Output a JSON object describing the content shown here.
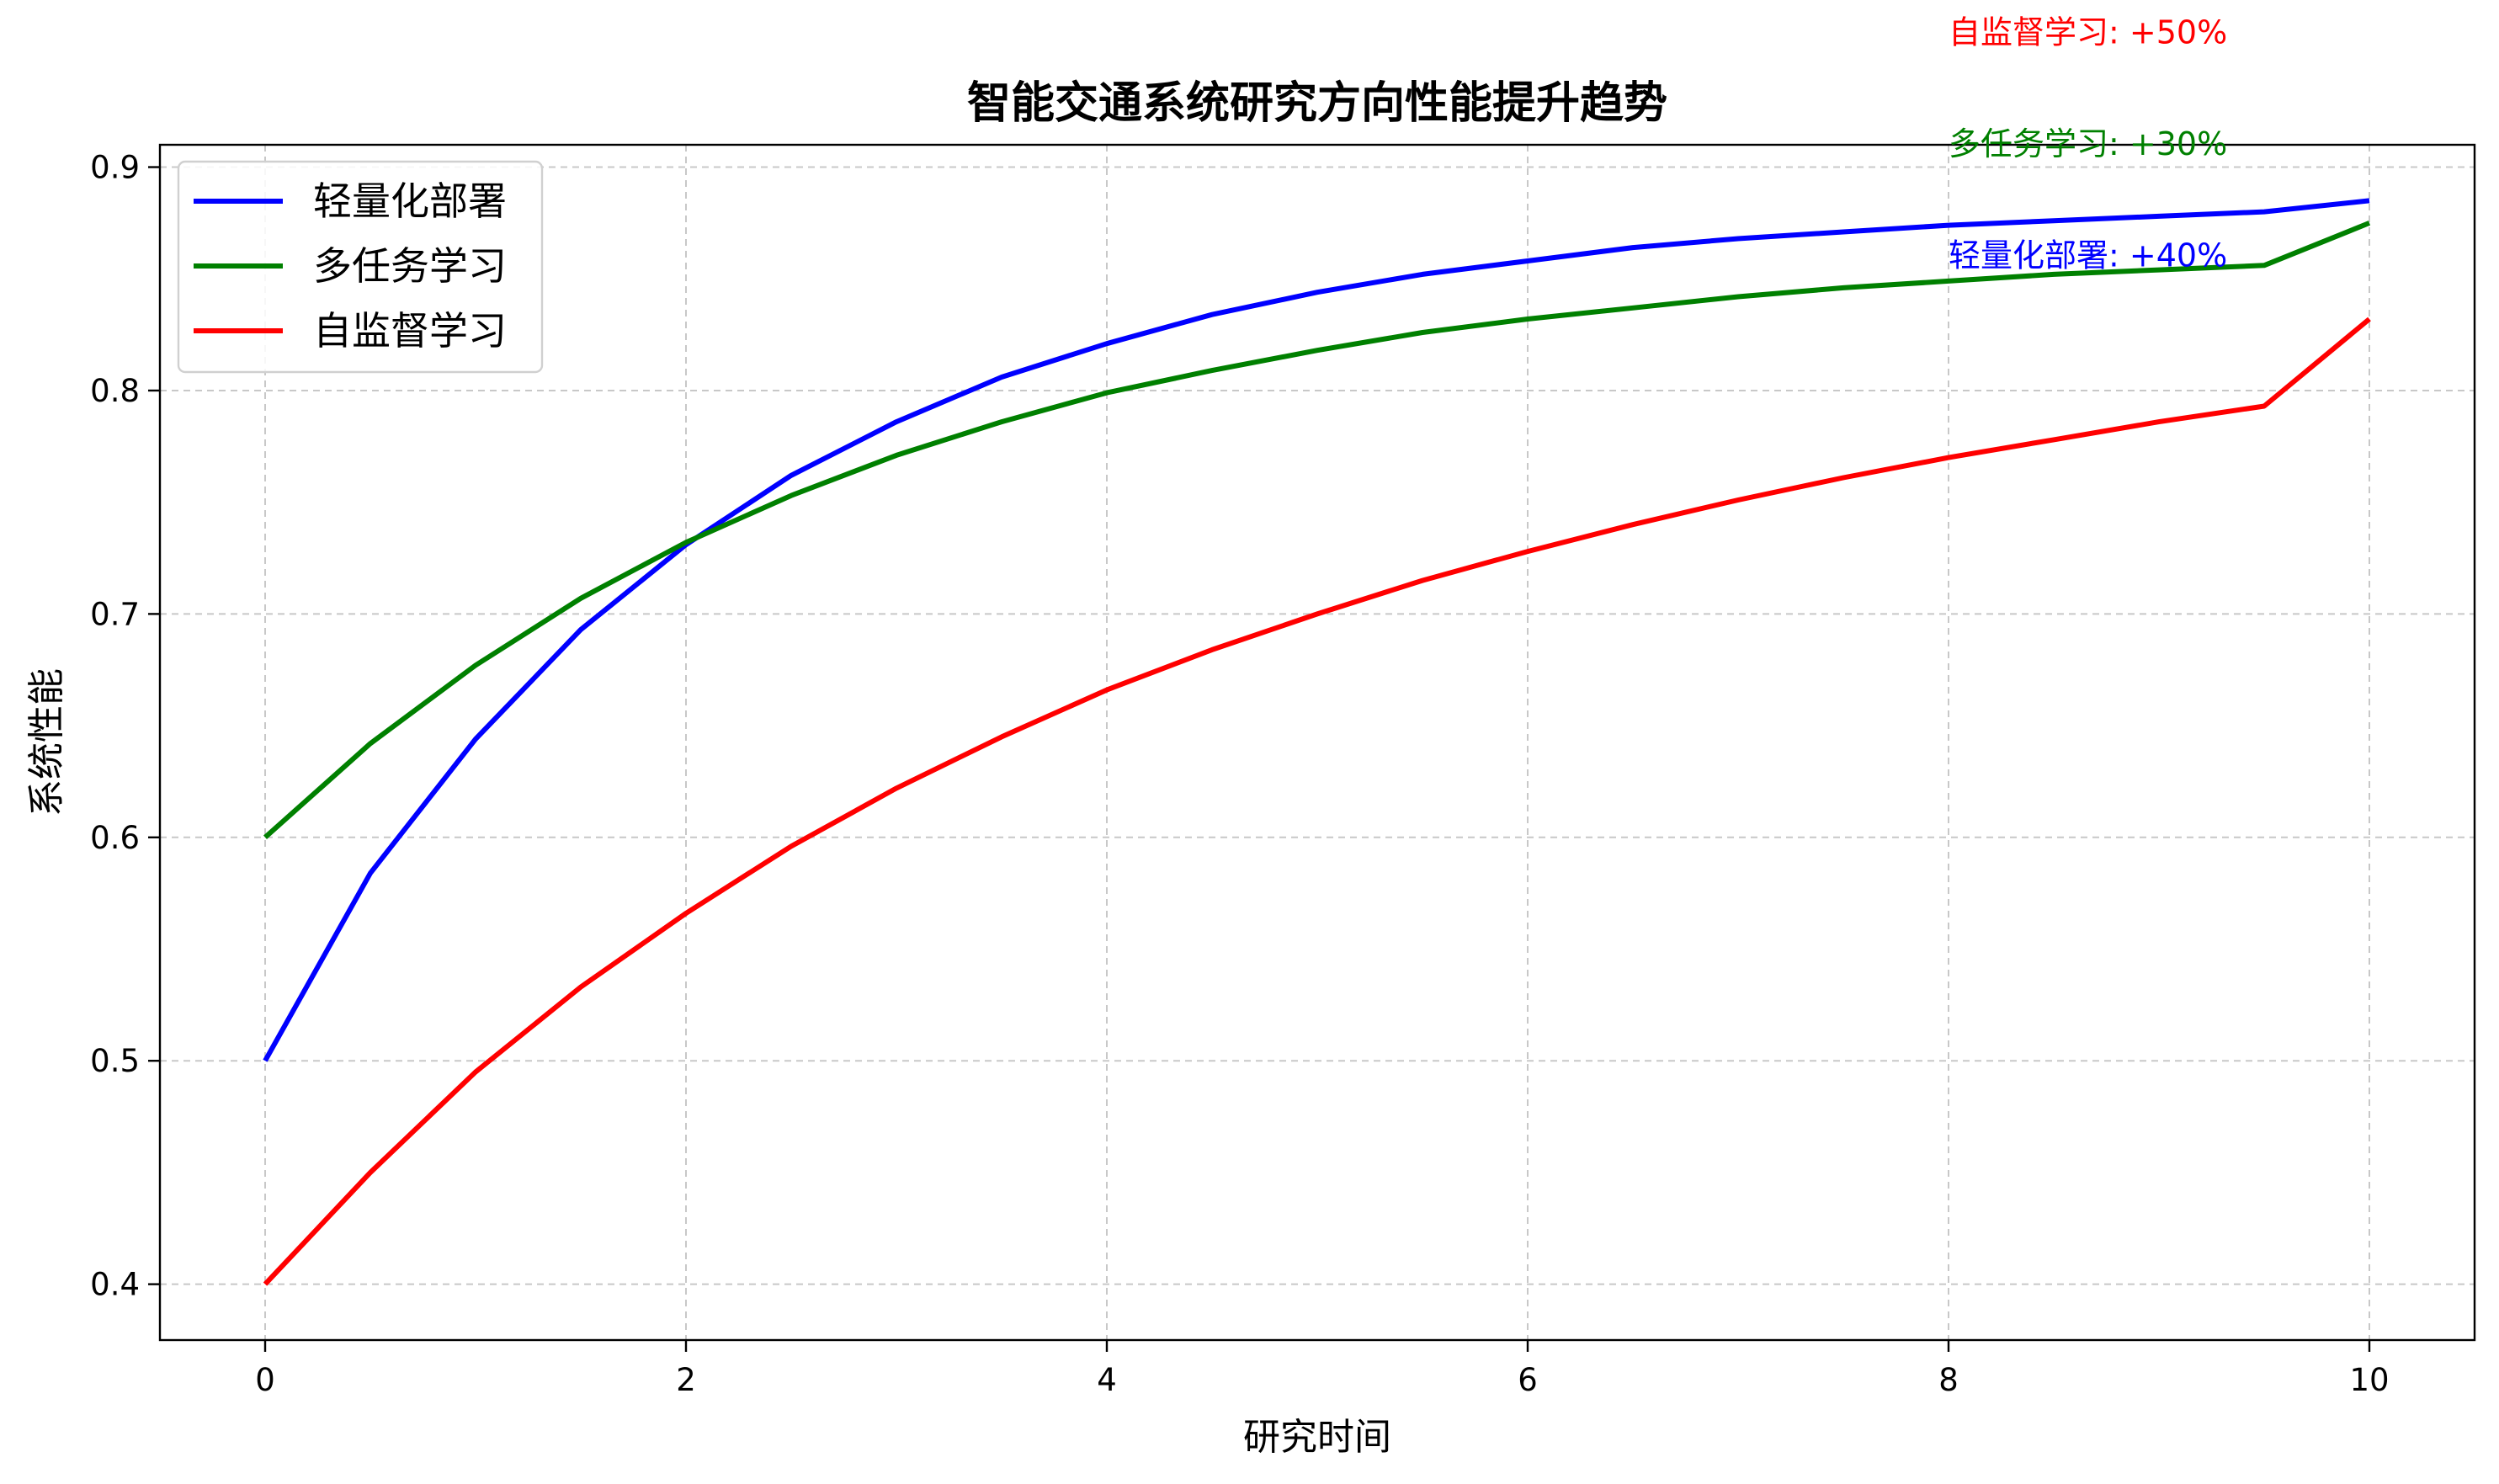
{
  "chart_data": {
    "type": "line",
    "title": "智能交通系统研究方向性能提升趋势",
    "xlabel": "研究时间",
    "ylabel": "系统性能",
    "xlim": [
      -0.5,
      10.5
    ],
    "ylim": [
      0.375,
      0.91
    ],
    "xticks": [
      0,
      2,
      4,
      6,
      8,
      10
    ],
    "yticks": [
      0.4,
      0.5,
      0.6,
      0.7,
      0.8,
      0.9
    ],
    "grid": true,
    "legend_position": "top-left",
    "x": [
      0,
      0.5,
      1,
      1.5,
      2,
      2.5,
      3,
      3.5,
      4,
      4.5,
      5,
      5.5,
      6,
      6.5,
      7,
      7.5,
      8,
      8.5,
      9,
      9.5,
      10
    ],
    "series": [
      {
        "name": "轻量化部署",
        "color": "#0000ff",
        "values": [
          0.5,
          0.584,
          0.644,
          0.693,
          0.731,
          0.762,
          0.786,
          0.806,
          0.821,
          0.834,
          0.844,
          0.852,
          0.858,
          0.864,
          0.868,
          0.871,
          0.874,
          0.876,
          0.878,
          0.88,
          0.885
        ]
      },
      {
        "name": "多任务学习",
        "color": "#008000",
        "values": [
          0.6,
          0.642,
          0.677,
          0.707,
          0.732,
          0.753,
          0.771,
          0.786,
          0.799,
          0.809,
          0.818,
          0.826,
          0.832,
          0.837,
          0.842,
          0.846,
          0.849,
          0.852,
          0.854,
          0.856,
          0.875
        ]
      },
      {
        "name": "自监督学习",
        "color": "#ff0000",
        "values": [
          0.4,
          0.45,
          0.495,
          0.533,
          0.566,
          0.596,
          0.622,
          0.645,
          0.666,
          0.684,
          0.7,
          0.715,
          0.728,
          0.74,
          0.751,
          0.761,
          0.77,
          0.778,
          0.786,
          0.793,
          0.832
        ]
      }
    ],
    "annotations": [
      {
        "text": "自监督学习: +50%",
        "color": "#ff0000",
        "x": 8,
        "y": 0.96
      },
      {
        "text": "多任务学习: +30%",
        "color": "#008000",
        "x": 8,
        "y": 0.91
      },
      {
        "text": "轻量化部署: +40%",
        "color": "#0000ff",
        "x": 8,
        "y": 0.86
      }
    ]
  }
}
